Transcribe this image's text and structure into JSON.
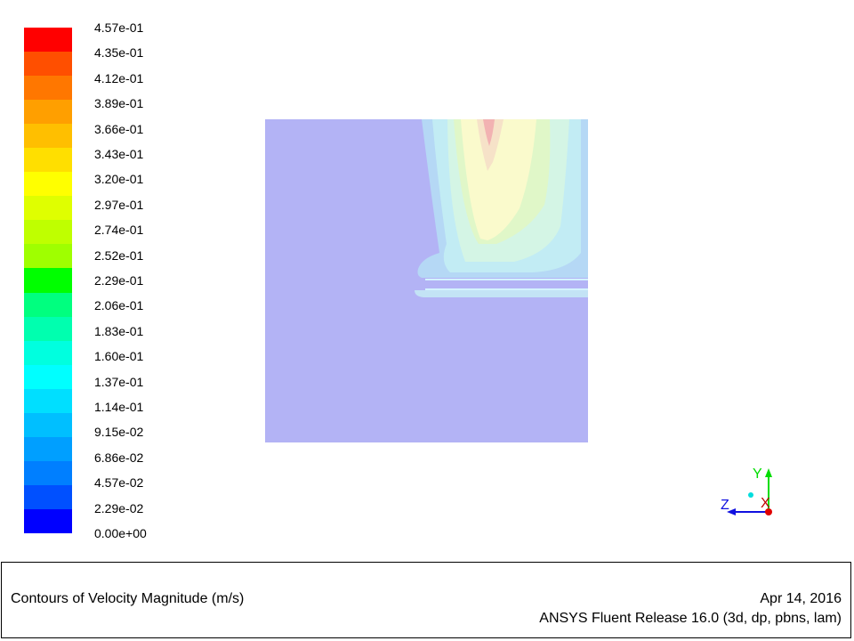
{
  "chart_data": {
    "type": "heatmap",
    "title": "Contours of Velocity Magnitude (m/s)",
    "variable": "Velocity Magnitude",
    "unit": "m/s",
    "range": [
      0.0,
      0.457
    ],
    "colorbar": {
      "labels": [
        "4.57e-01",
        "4.35e-01",
        "4.12e-01",
        "3.89e-01",
        "3.66e-01",
        "3.43e-01",
        "3.20e-01",
        "2.97e-01",
        "2.74e-01",
        "2.52e-01",
        "2.29e-01",
        "2.06e-01",
        "1.83e-01",
        "1.60e-01",
        "1.37e-01",
        "1.14e-01",
        "9.15e-02",
        "6.86e-02",
        "4.57e-02",
        "2.29e-02",
        "0.00e+00"
      ],
      "colors": [
        "#ff0000",
        "#ff4f00",
        "#ff7700",
        "#ff9f00",
        "#ffbf00",
        "#ffdf00",
        "#ffff00",
        "#dfff00",
        "#bfff00",
        "#9fff00",
        "#00ff00",
        "#00ff7f",
        "#00ffaf",
        "#00ffdf",
        "#00ffff",
        "#00dfff",
        "#00bfff",
        "#009fff",
        "#007fff",
        "#0050ff",
        "#0000ff"
      ]
    }
  },
  "plot": {
    "background_color": "#b3b3f5"
  },
  "triad": {
    "y_label": "Y",
    "z_label": "Z",
    "x_label": "X"
  },
  "footer": {
    "title": "Contours of Velocity Magnitude (m/s)",
    "date": "Apr 14, 2016",
    "release": "ANSYS Fluent Release 16.0 (3d, dp, pbns, lam)"
  }
}
